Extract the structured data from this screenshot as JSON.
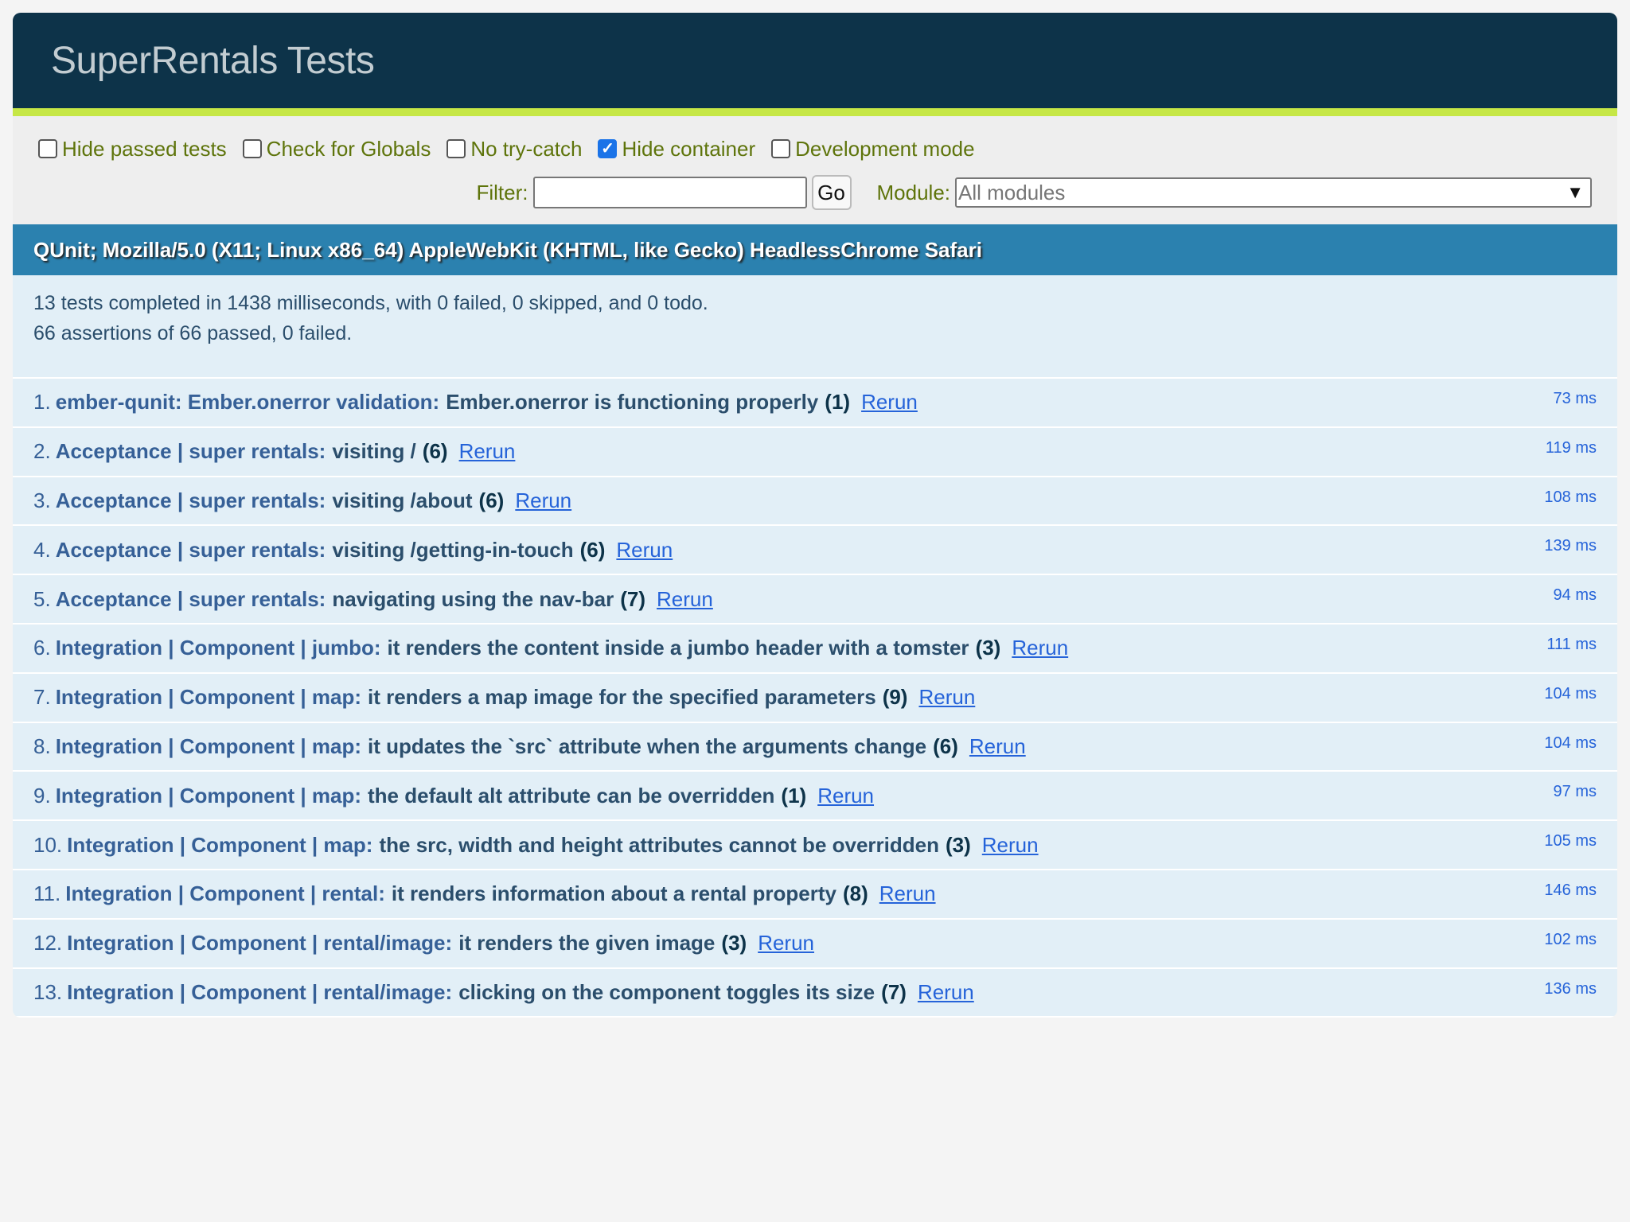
{
  "header": {
    "title": "SuperRentals Tests"
  },
  "toolbar": {
    "options": [
      {
        "label": "Hide passed tests",
        "checked": false
      },
      {
        "label": "Check for Globals",
        "checked": false
      },
      {
        "label": "No try-catch",
        "checked": false
      },
      {
        "label": "Hide container",
        "checked": true
      },
      {
        "label": "Development mode",
        "checked": false
      }
    ],
    "filter_label": "Filter:",
    "filter_value": "",
    "go_label": "Go",
    "module_label": "Module:",
    "module_value": "All modules",
    "module_arrow": "▼"
  },
  "banner": {
    "user_agent": "QUnit; Mozilla/5.0 (X11; Linux x86_64) AppleWebKit (KHTML, like Gecko) HeadlessChrome Safari"
  },
  "summary": {
    "line1": "13 tests completed in 1438 milliseconds, with 0 failed, 0 skipped, and 0 todo.",
    "line2": "66 assertions of 66 passed, 0 failed."
  },
  "tests": [
    {
      "num": "1.",
      "module": "ember-qunit: Ember.onerror validation:",
      "name": "Ember.onerror is functioning properly",
      "count": "(1)",
      "rerun": "Rerun",
      "time": "73 ms"
    },
    {
      "num": "2.",
      "module": "Acceptance | super rentals:",
      "name": "visiting /",
      "count": "(6)",
      "rerun": "Rerun",
      "time": "119 ms"
    },
    {
      "num": "3.",
      "module": "Acceptance | super rentals:",
      "name": "visiting /about",
      "count": "(6)",
      "rerun": "Rerun",
      "time": "108 ms"
    },
    {
      "num": "4.",
      "module": "Acceptance | super rentals:",
      "name": "visiting /getting-in-touch",
      "count": "(6)",
      "rerun": "Rerun",
      "time": "139 ms"
    },
    {
      "num": "5.",
      "module": "Acceptance | super rentals:",
      "name": "navigating using the nav-bar",
      "count": "(7)",
      "rerun": "Rerun",
      "time": "94 ms"
    },
    {
      "num": "6.",
      "module": "Integration | Component | jumbo:",
      "name": "it renders the content inside a jumbo header with a tomster",
      "count": "(3)",
      "rerun": "Rerun",
      "time": "111 ms"
    },
    {
      "num": "7.",
      "module": "Integration | Component | map:",
      "name": "it renders a map image for the specified parameters",
      "count": "(9)",
      "rerun": "Rerun",
      "time": "104 ms"
    },
    {
      "num": "8.",
      "module": "Integration | Component | map:",
      "name": "it updates the `src` attribute when the arguments change",
      "count": "(6)",
      "rerun": "Rerun",
      "time": "104 ms"
    },
    {
      "num": "9.",
      "module": "Integration | Component | map:",
      "name": "the default alt attribute can be overridden",
      "count": "(1)",
      "rerun": "Rerun",
      "time": "97 ms"
    },
    {
      "num": "10.",
      "module": "Integration | Component | map:",
      "name": "the src, width and height attributes cannot be overridden",
      "count": "(3)",
      "rerun": "Rerun",
      "time": "105 ms"
    },
    {
      "num": "11.",
      "module": "Integration | Component | rental:",
      "name": "it renders information about a rental property",
      "count": "(8)",
      "rerun": "Rerun",
      "time": "146 ms"
    },
    {
      "num": "12.",
      "module": "Integration | Component | rental/image:",
      "name": "it renders the given image",
      "count": "(3)",
      "rerun": "Rerun",
      "time": "102 ms"
    },
    {
      "num": "13.",
      "module": "Integration | Component | rental/image:",
      "name": "clicking on the component toggles its size",
      "count": "(7)",
      "rerun": "Rerun",
      "time": "136 ms"
    }
  ]
}
